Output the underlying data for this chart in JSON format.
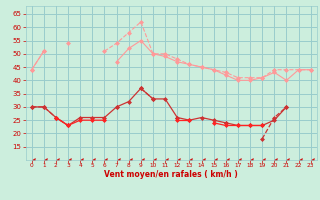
{
  "xlabel": "Vent moyen/en rafales ( km/h )",
  "x_values": [
    0,
    1,
    2,
    3,
    4,
    5,
    6,
    7,
    8,
    9,
    10,
    11,
    12,
    13,
    14,
    15,
    16,
    17,
    18,
    19,
    20,
    21,
    22,
    23
  ],
  "series": [
    {
      "color": "#ff9999",
      "marker": "D",
      "markersize": 2,
      "linewidth": 0.8,
      "linestyle": "--",
      "values": [
        44,
        51,
        null,
        54,
        null,
        null,
        51,
        54,
        58,
        62,
        50,
        50,
        48,
        46,
        45,
        44,
        43,
        41,
        41,
        41,
        44,
        44,
        44,
        44
      ]
    },
    {
      "color": "#ff9999",
      "marker": "D",
      "markersize": 2,
      "linewidth": 0.8,
      "linestyle": "-",
      "values": [
        44,
        51,
        null,
        null,
        null,
        null,
        null,
        47,
        52,
        55,
        50,
        49,
        47,
        46,
        45,
        44,
        42,
        40,
        40,
        41,
        43,
        40,
        44,
        44
      ]
    },
    {
      "color": "#cc3333",
      "marker": "D",
      "markersize": 2,
      "linewidth": 0.9,
      "linestyle": "-",
      "values": [
        30,
        30,
        26,
        23,
        26,
        26,
        26,
        30,
        32,
        37,
        33,
        33,
        26,
        25,
        26,
        25,
        24,
        23,
        23,
        23,
        25,
        30,
        null,
        null
      ]
    },
    {
      "color": "#cc3333",
      "marker": "D",
      "markersize": 2,
      "linewidth": 0.9,
      "linestyle": "--",
      "values": [
        30,
        30,
        26,
        23,
        null,
        null,
        null,
        30,
        null,
        37,
        33,
        null,
        26,
        null,
        null,
        null,
        24,
        null,
        null,
        18,
        26,
        30,
        null,
        null
      ]
    },
    {
      "color": "#ff2222",
      "marker": "D",
      "markersize": 2,
      "linewidth": 0.9,
      "linestyle": "-",
      "values": [
        null,
        null,
        26,
        23,
        25,
        25,
        25,
        null,
        null,
        null,
        null,
        null,
        25,
        25,
        null,
        24,
        23,
        23,
        23,
        23,
        null,
        null,
        null,
        null
      ]
    },
    {
      "color": "#cc0000",
      "marker": 4,
      "markersize": 3,
      "linewidth": 0.7,
      "linestyle": "-",
      "values": [
        10,
        10,
        10,
        10,
        10,
        10,
        10,
        10,
        10,
        10,
        10,
        10,
        10,
        10,
        10,
        10,
        10,
        10,
        10,
        10,
        10,
        10,
        10,
        10
      ]
    }
  ],
  "ylim": [
    10,
    68
  ],
  "yticks": [
    15,
    20,
    25,
    30,
    35,
    40,
    45,
    50,
    55,
    60,
    65
  ],
  "xlim": [
    -0.5,
    23.5
  ],
  "xticks": [
    0,
    1,
    2,
    3,
    4,
    5,
    6,
    7,
    8,
    9,
    10,
    11,
    12,
    13,
    14,
    15,
    16,
    17,
    18,
    19,
    20,
    21,
    22,
    23
  ],
  "bg_color": "#cceedd",
  "grid_color": "#99cccc",
  "tick_color": "#cc0000",
  "label_color": "#cc0000"
}
